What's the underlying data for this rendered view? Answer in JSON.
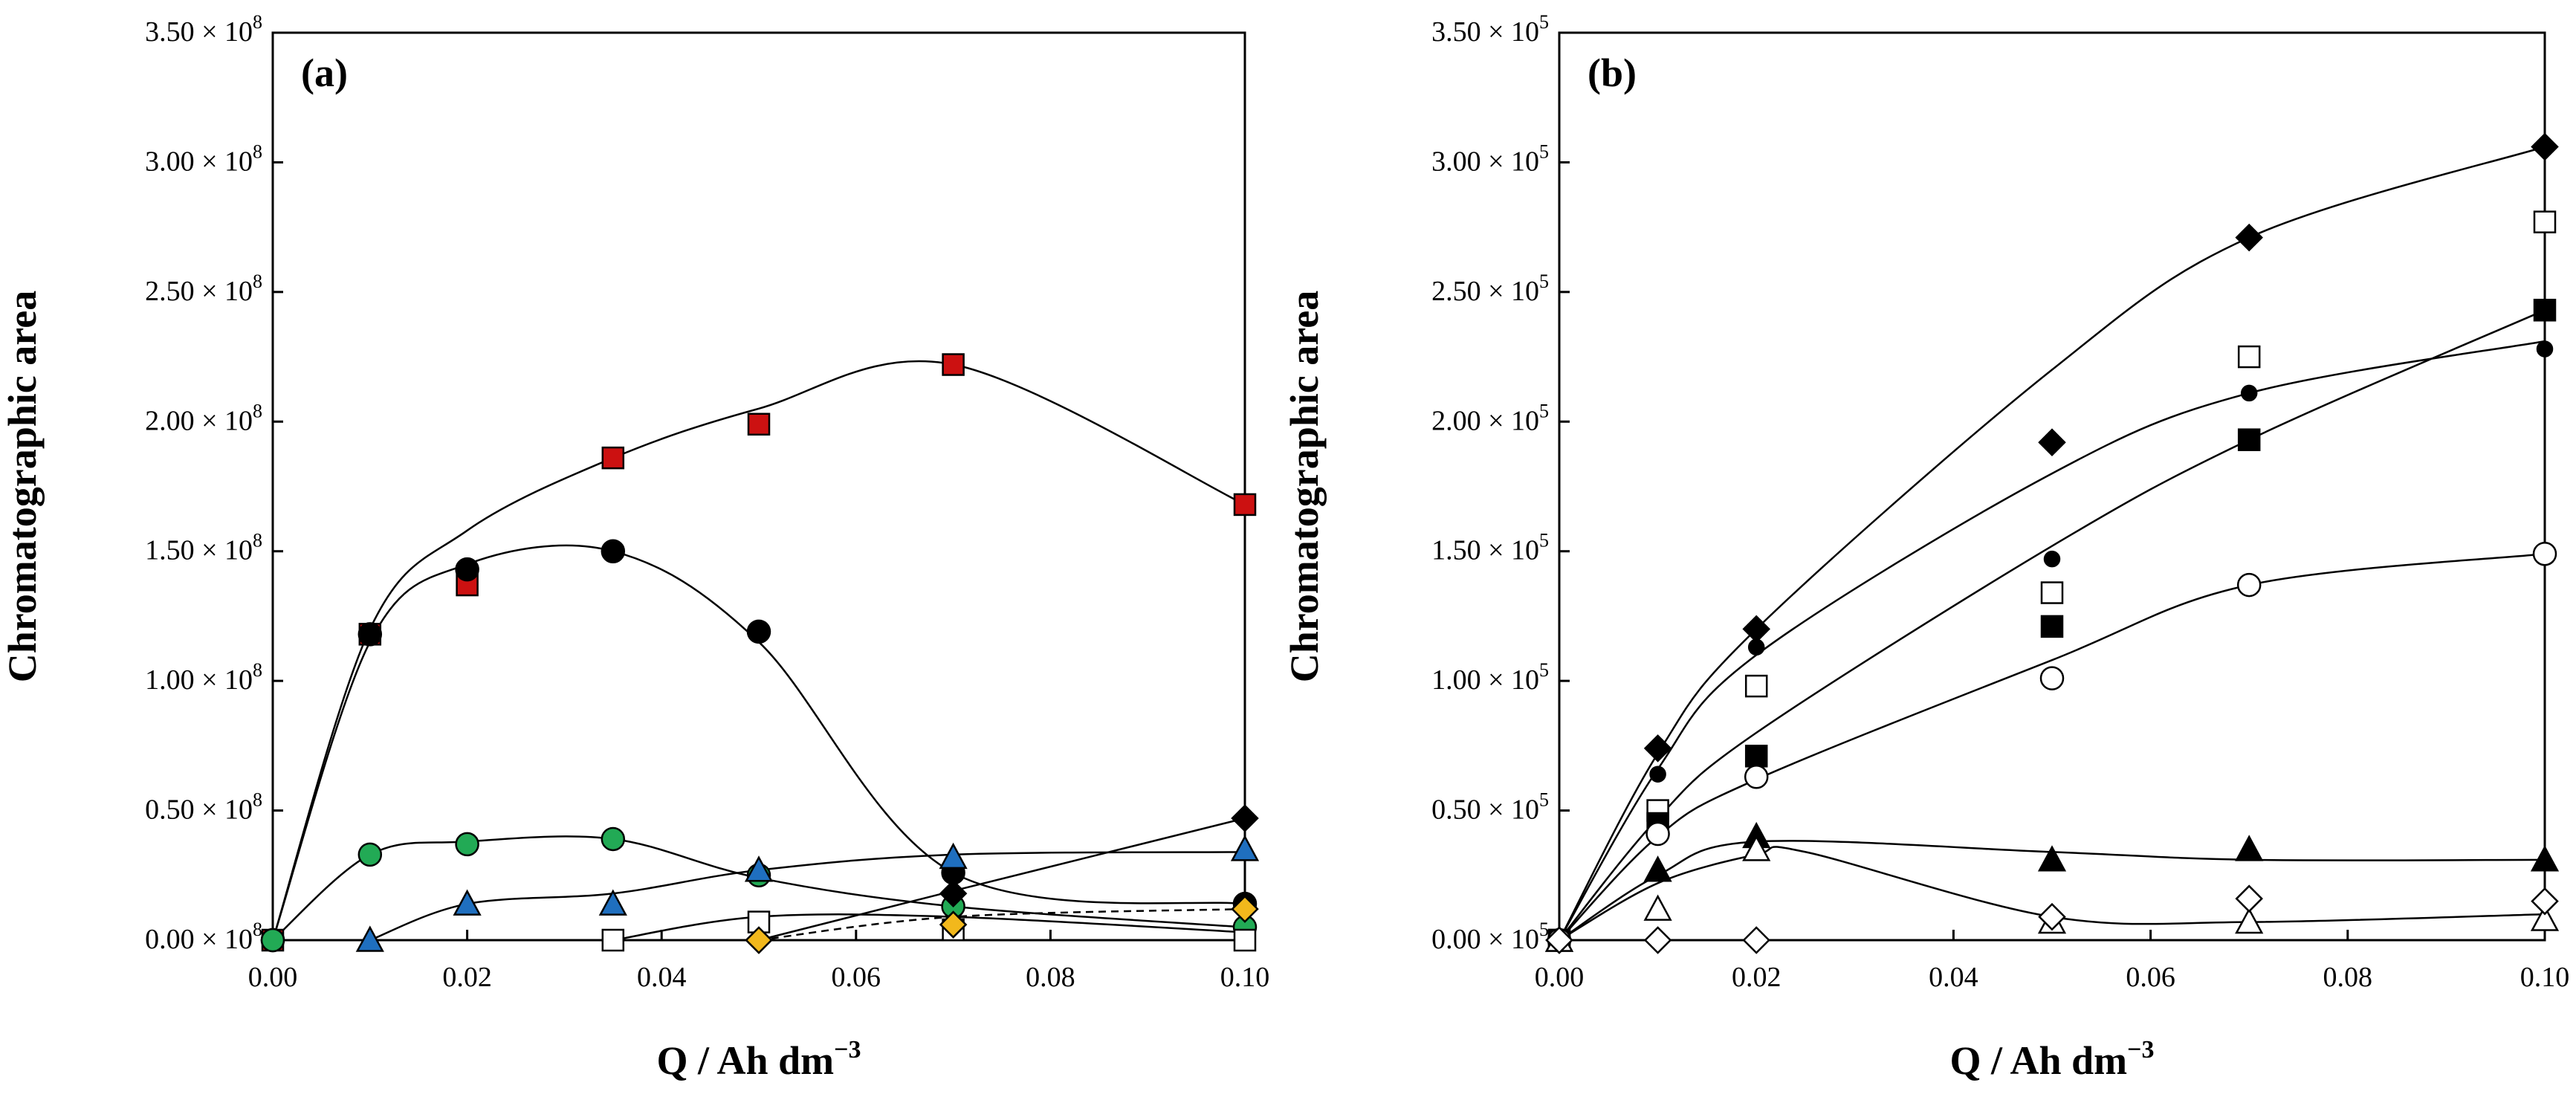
{
  "chart_data": [
    {
      "type": "scatter",
      "panel_label": "(a)",
      "xlabel": "Q / Ah dm⁻³",
      "ylabel": "Chromatographic area",
      "xlim": [
        0,
        0.1
      ],
      "ylim": [
        0,
        3.5
      ],
      "y_exponent_label": "× 10⁸",
      "x_ticks": [
        0,
        0.02,
        0.04,
        0.06,
        0.08,
        0.1
      ],
      "x_tick_labels": [
        "0.00",
        "0.02",
        "0.04",
        "0.06",
        "0.08",
        "0.10"
      ],
      "y_ticks": [
        0,
        0.5,
        1.0,
        1.5,
        2.0,
        2.5,
        3.0,
        3.5
      ],
      "y_tick_labels": [
        "0.00 × 10⁸",
        "0.50 × 10⁸",
        "1.00 × 10⁸",
        "1.50 × 10⁸",
        "2.00 × 10⁸",
        "2.50 × 10⁸",
        "3.00 × 10⁸",
        "3.50 × 10⁸"
      ],
      "series": [
        {
          "name": "red square",
          "marker": "square",
          "color": "#cc1111",
          "curve": "solid",
          "x": [
            0,
            0.01,
            0.02,
            0.035,
            0.05,
            0.07,
            0.1
          ],
          "y": [
            0,
            1.18,
            1.37,
            1.86,
            1.99,
            2.22,
            1.68
          ],
          "curve_x": [
            0,
            0.01,
            0.02,
            0.035,
            0.05,
            0.07,
            0.1
          ],
          "curve_y": [
            0,
            1.2,
            1.58,
            1.86,
            2.05,
            2.22,
            1.68
          ]
        },
        {
          "name": "black circle",
          "marker": "circle",
          "color": "#000000",
          "curve": "solid",
          "x": [
            0,
            0.01,
            0.02,
            0.035,
            0.05,
            0.07,
            0.1
          ],
          "y": [
            0,
            1.18,
            1.43,
            1.5,
            1.19,
            0.26,
            0.14
          ],
          "curve_x": [
            0,
            0.01,
            0.02,
            0.035,
            0.05,
            0.07,
            0.1
          ],
          "curve_y": [
            0,
            1.15,
            1.45,
            1.5,
            1.15,
            0.26,
            0.14
          ]
        },
        {
          "name": "green circle",
          "marker": "circle",
          "color": "#22aa55",
          "curve": "solid",
          "x": [
            0,
            0.01,
            0.02,
            0.035,
            0.05,
            0.07,
            0.1
          ],
          "y": [
            0,
            0.33,
            0.37,
            0.39,
            0.25,
            0.13,
            0.05
          ],
          "curve_x": [
            0,
            0.01,
            0.02,
            0.035,
            0.05,
            0.07,
            0.1
          ],
          "curve_y": [
            0,
            0.33,
            0.38,
            0.39,
            0.24,
            0.13,
            0.05
          ]
        },
        {
          "name": "blue triangle",
          "marker": "triangle",
          "color": "#1f6fbf",
          "curve": "solid",
          "x": [
            0.01,
            0.02,
            0.035,
            0.05,
            0.07,
            0.1
          ],
          "y": [
            0,
            0.14,
            0.14,
            0.27,
            0.32,
            0.35
          ],
          "curve_x": [
            0.01,
            0.02,
            0.035,
            0.05,
            0.07,
            0.1
          ],
          "curve_y": [
            0,
            0.14,
            0.18,
            0.27,
            0.33,
            0.34
          ]
        },
        {
          "name": "black diamond",
          "marker": "diamond",
          "color": "#000000",
          "curve": "solid",
          "x": [
            0.05,
            0.07,
            0.1
          ],
          "y": [
            0,
            0.18,
            0.47
          ],
          "curve_x": [
            0.05,
            0.07,
            0.1
          ],
          "curve_y": [
            0,
            0.19,
            0.47
          ]
        },
        {
          "name": "open square",
          "marker": "square",
          "color": "#ffffff",
          "curve": "solid",
          "x": [
            0.035,
            0.05,
            0.07,
            0.1
          ],
          "y": [
            0,
            0.07,
            0.04,
            0
          ],
          "curve_x": [
            0.035,
            0.05,
            0.07,
            0.1
          ],
          "curve_y": [
            0,
            0.09,
            0.09,
            0.03
          ]
        },
        {
          "name": "yellow diamond",
          "marker": "diamond",
          "color": "#f2b81c",
          "curve": "dashed",
          "x": [
            0.05,
            0.07,
            0.1
          ],
          "y": [
            0,
            0.06,
            0.12
          ],
          "curve_x": [
            0.05,
            0.07,
            0.1
          ],
          "curve_y": [
            0,
            0.09,
            0.12
          ]
        }
      ]
    },
    {
      "type": "scatter",
      "panel_label": "(b)",
      "xlabel": "Q / Ah dm⁻³",
      "ylabel": "Chromatographic area",
      "xlim": [
        0,
        0.1
      ],
      "ylim": [
        0,
        3.5
      ],
      "y_exponent_label": "× 10⁵",
      "x_ticks": [
        0,
        0.02,
        0.04,
        0.06,
        0.08,
        0.1
      ],
      "x_tick_labels": [
        "0.00",
        "0.02",
        "0.04",
        "0.06",
        "0.08",
        "0.10"
      ],
      "y_ticks": [
        0,
        0.5,
        1.0,
        1.5,
        2.0,
        2.5,
        3.0,
        3.5
      ],
      "y_tick_labels": [
        "0.00 × 10⁵",
        "0.50 × 10⁵",
        "1.00 × 10⁵",
        "1.50 × 10⁵",
        "2.00 × 10⁵",
        "2.50 × 10⁵",
        "3.00 × 10⁵",
        "3.50 × 10⁵"
      ],
      "series": [
        {
          "name": "filled diamond",
          "marker": "diamond",
          "color": "#000000",
          "curve": "solid",
          "x": [
            0,
            0.01,
            0.02,
            0.05,
            0.07,
            0.1
          ],
          "y": [
            0,
            0.74,
            1.2,
            1.92,
            2.71,
            3.06
          ],
          "curve_x": [
            0,
            0.01,
            0.02,
            0.05,
            0.07,
            0.1
          ],
          "curve_y": [
            0,
            0.72,
            1.2,
            2.2,
            2.71,
            3.06
          ]
        },
        {
          "name": "small filled circle",
          "marker": "dot",
          "color": "#000000",
          "curve": "solid",
          "x": [
            0,
            0.01,
            0.02,
            0.05,
            0.07,
            0.1
          ],
          "y": [
            0,
            0.64,
            1.13,
            1.47,
            2.11,
            2.28
          ],
          "curve_x": [
            0,
            0.01,
            0.02,
            0.05,
            0.07,
            0.1
          ],
          "curve_y": [
            0,
            0.66,
            1.1,
            1.8,
            2.11,
            2.31
          ]
        },
        {
          "name": "open square",
          "marker": "square",
          "color": "#ffffff",
          "curve": "none",
          "x": [
            0,
            0.01,
            0.02,
            0.05,
            0.07,
            0.1
          ],
          "y": [
            0,
            0.5,
            0.98,
            1.34,
            2.25,
            2.77
          ]
        },
        {
          "name": "filled square",
          "marker": "square",
          "color": "#000000",
          "curve": "solid",
          "x": [
            0,
            0.01,
            0.02,
            0.05,
            0.07,
            0.1
          ],
          "y": [
            0,
            0.45,
            0.71,
            1.21,
            1.93,
            2.43
          ],
          "curve_x": [
            0,
            0.01,
            0.02,
            0.05,
            0.07,
            0.1
          ],
          "curve_y": [
            0,
            0.47,
            0.8,
            1.52,
            1.93,
            2.43
          ]
        },
        {
          "name": "open circle",
          "marker": "circle",
          "color": "#ffffff",
          "curve": "solid",
          "x": [
            0,
            0.01,
            0.02,
            0.05,
            0.07,
            0.1
          ],
          "y": [
            0,
            0.41,
            0.63,
            1.01,
            1.37,
            1.49
          ],
          "curve_x": [
            0,
            0.01,
            0.02,
            0.05,
            0.07,
            0.1
          ],
          "curve_y": [
            0,
            0.4,
            0.62,
            1.08,
            1.37,
            1.49
          ]
        },
        {
          "name": "filled triangle",
          "marker": "triangle",
          "color": "#000000",
          "curve": "solid",
          "x": [
            0,
            0.01,
            0.02,
            0.05,
            0.07,
            0.1
          ],
          "y": [
            0,
            0.27,
            0.4,
            0.31,
            0.35,
            0.31
          ],
          "curve_x": [
            0,
            0.01,
            0.02,
            0.05,
            0.07,
            0.1
          ],
          "curve_y": [
            0,
            0.25,
            0.38,
            0.34,
            0.31,
            0.31
          ]
        },
        {
          "name": "open triangle",
          "marker": "triangle",
          "color": "#ffffff",
          "curve": "solid",
          "x": [
            0,
            0.01,
            0.02,
            0.05,
            0.07,
            0.1
          ],
          "y": [
            0,
            0.12,
            0.35,
            0.07,
            0.07,
            0.08
          ],
          "curve_x": [
            0,
            0.01,
            0.02,
            0.025,
            0.05,
            0.07,
            0.1
          ],
          "curve_y": [
            0,
            0.22,
            0.33,
            0.34,
            0.09,
            0.07,
            0.1
          ]
        },
        {
          "name": "open diamond",
          "marker": "diamond",
          "color": "#ffffff",
          "curve": "none",
          "x": [
            0,
            0.01,
            0.02,
            0.05,
            0.07,
            0.1
          ],
          "y": [
            0,
            0,
            0,
            0.09,
            0.16,
            0.15
          ]
        }
      ]
    }
  ]
}
